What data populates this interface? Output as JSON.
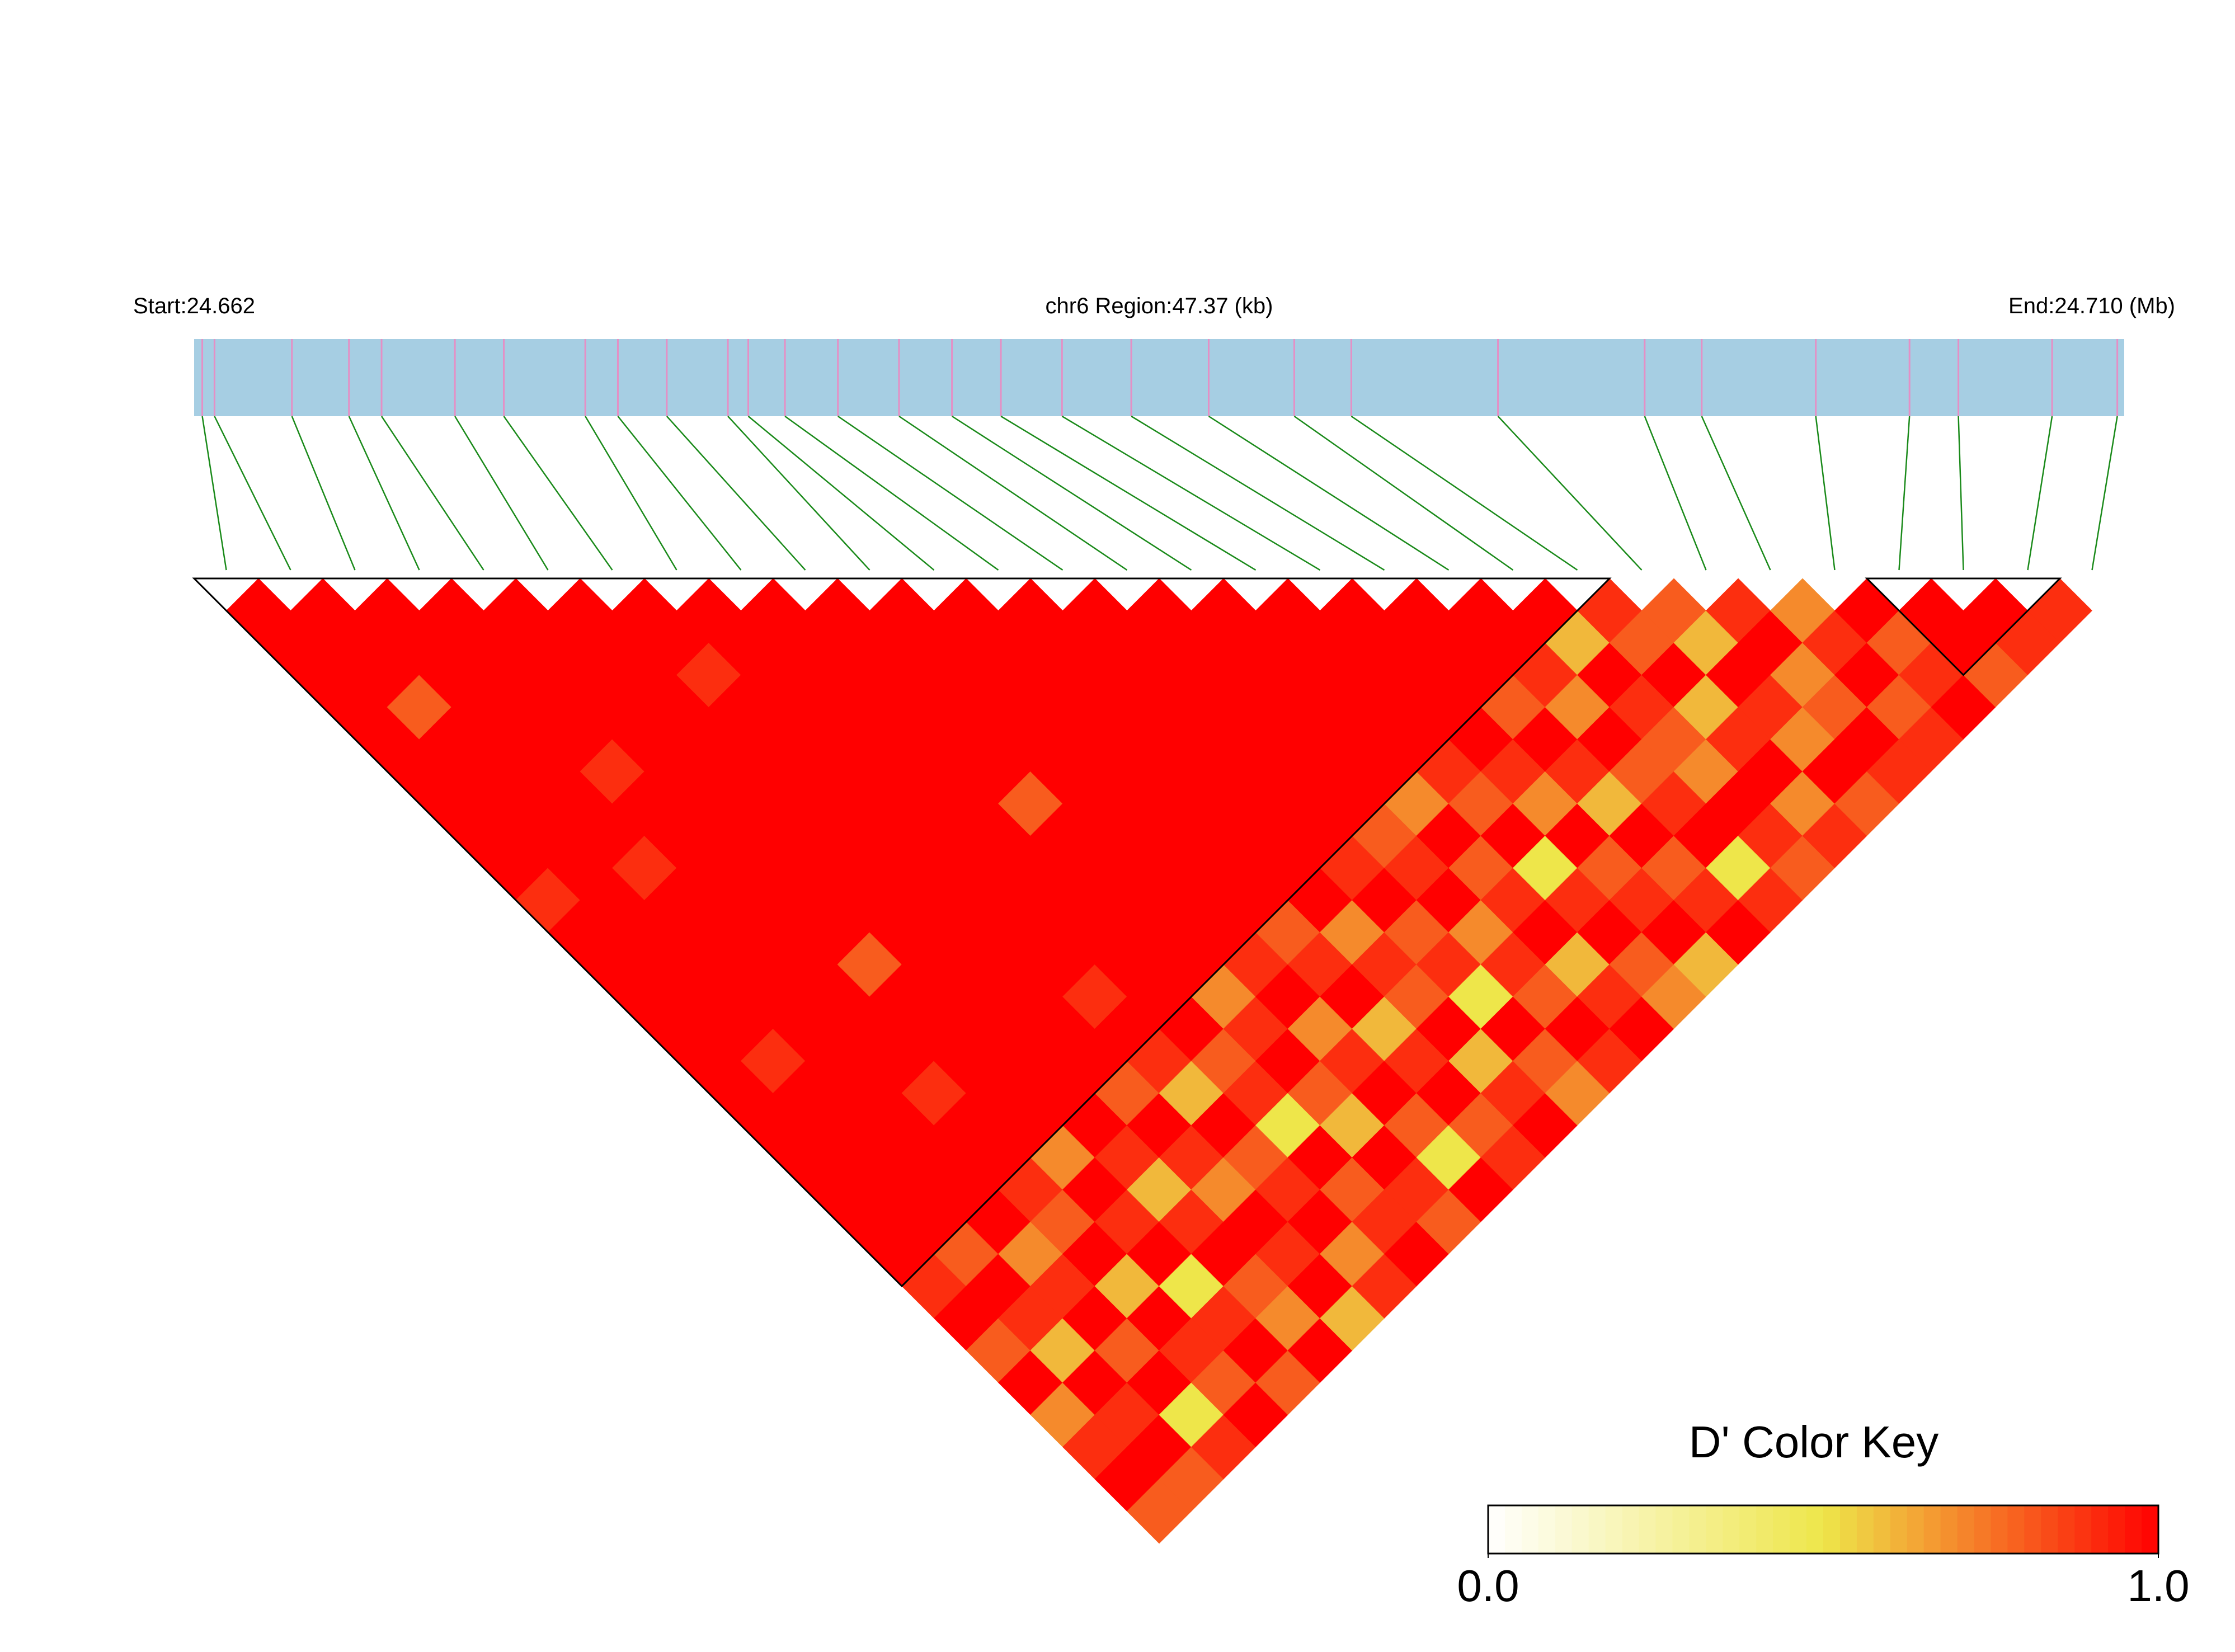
{
  "chart_data": {
    "type": "ld-heatmap",
    "start_label": "Start:24.662",
    "region_label": "chr6 Region:47.37 (kb)",
    "end_label": "End:24.710 (Mb)",
    "xlim": [
      0,
      47.37
    ],
    "positions": [
      0.2,
      0.5,
      2.4,
      3.8,
      4.6,
      6.4,
      7.6,
      9.6,
      10.4,
      11.6,
      13.1,
      13.6,
      14.5,
      15.8,
      17.3,
      18.6,
      19.8,
      21.3,
      23.0,
      24.9,
      27.0,
      28.4,
      32.0,
      35.6,
      37.0,
      39.8,
      42.1,
      43.3,
      45.6,
      47.2
    ],
    "bar_color": "#a6cee3",
    "marker_color": "#e58fc5",
    "connector_color": "#1a8a1a",
    "block_color": "#000000",
    "ld": [
      [
        1,
        1,
        1,
        1,
        1,
        1,
        1,
        1,
        1,
        0.9,
        1,
        1,
        1,
        1,
        1,
        1,
        1,
        1,
        1,
        1,
        1,
        0.9,
        1,
        0.8,
        1,
        0.7,
        0.9,
        1,
        0.8
      ],
      [
        1,
        1,
        1,
        0.8,
        1,
        1,
        1,
        1,
        1,
        1,
        1,
        1,
        1,
        1,
        0.9,
        1,
        1,
        1,
        1,
        1,
        0.8,
        1,
        0.9,
        0.6,
        1,
        0.9,
        1,
        0.8
      ],
      [
        1,
        1,
        1,
        1,
        1,
        1,
        1,
        1,
        0.9,
        1,
        1,
        1,
        1,
        1,
        1,
        1,
        1,
        1,
        1,
        1,
        0.7,
        0.9,
        1,
        0.8,
        1,
        0.5,
        0.9
      ],
      [
        1,
        1,
        1,
        1,
        1,
        0.9,
        1,
        1,
        1,
        1,
        1,
        1,
        1,
        1,
        1,
        0.9,
        1,
        1,
        0.9,
        0.8,
        1,
        0.6,
        1,
        0.9,
        0.8,
        1
      ],
      [
        1,
        1,
        1,
        1,
        1,
        1,
        1,
        1,
        1,
        1,
        1,
        0.8,
        1,
        1,
        1,
        1,
        1,
        0.7,
        1,
        0.9,
        1,
        0.5,
        0.9,
        1,
        0.8
      ],
      [
        1,
        1,
        1,
        1,
        1,
        1,
        1,
        1,
        1,
        1,
        1,
        1,
        1,
        1,
        1,
        1,
        1,
        0.9,
        0.6,
        0.9,
        1,
        0.8,
        0.7,
        1
      ],
      [
        1,
        1,
        0.9,
        1,
        1,
        1,
        1,
        1,
        1,
        1,
        1,
        1,
        1,
        1,
        1,
        0.8,
        1,
        0.9,
        0.7,
        1,
        0.9,
        1,
        0.6
      ],
      [
        1,
        1,
        1,
        1,
        1,
        1,
        1,
        1,
        1,
        1,
        1,
        1,
        0.9,
        1,
        0.9,
        0.6,
        1,
        0.8,
        0.9,
        1,
        0.7,
        0.9
      ],
      [
        1,
        1,
        1,
        1,
        1,
        1,
        1,
        1,
        1,
        1,
        1,
        1,
        1,
        1,
        0.8,
        0.9,
        0.5,
        1,
        0.8,
        0.9,
        1
      ],
      [
        1,
        1,
        1,
        1,
        1,
        1,
        0.8,
        1,
        1,
        1,
        1,
        1,
        0.7,
        0.9,
        1,
        0.8,
        0.6,
        1,
        0.9,
        0.8
      ],
      [
        1,
        1,
        1,
        1,
        1,
        1,
        1,
        1,
        1,
        1,
        1,
        0.9,
        1,
        0.7,
        0.9,
        1,
        0.8,
        0.5,
        1
      ],
      [
        1,
        1,
        1,
        1,
        1,
        1,
        1,
        1,
        1,
        1,
        0.8,
        0.9,
        1,
        0.6,
        0.9,
        1,
        0.8,
        0.9
      ],
      [
        1,
        1,
        1,
        1,
        1,
        1,
        1,
        1,
        1,
        1,
        0.7,
        0.9,
        0.8,
        1,
        0.6,
        0.9,
        1
      ],
      [
        1,
        1,
        1,
        1,
        1,
        1,
        1,
        1,
        0.9,
        1,
        0.8,
        0.9,
        0.5,
        1,
        0.8,
        0.7
      ],
      [
        1,
        1,
        1,
        1,
        1,
        1,
        1,
        0.8,
        0.9,
        1,
        0.7,
        0.9,
        0.8,
        1,
        0.9
      ],
      [
        1,
        1,
        1,
        1,
        1,
        1,
        0.7,
        1,
        0.8,
        0.9,
        1,
        0.6,
        0.9,
        1
      ],
      [
        1,
        1,
        1,
        1,
        1,
        0.9,
        0.8,
        1,
        0.5,
        0.9,
        1,
        0.8,
        0.7
      ],
      [
        1,
        1,
        1,
        1,
        1,
        0.9,
        0.7,
        1,
        0.8,
        0.9,
        1,
        0.6
      ],
      [
        1,
        1,
        1,
        0.8,
        1,
        0.9,
        0.6,
        1,
        0.8,
        0.9,
        1
      ],
      [
        1,
        1,
        0.9,
        0.7,
        1,
        0.8,
        0.9,
        1,
        0.5,
        0.9
      ],
      [
        1,
        0.6,
        1,
        0.9,
        0.8,
        0.7,
        1,
        0.9,
        0.8
      ],
      [
        0.9,
        0.8,
        1,
        0.6,
        0.9,
        1,
        0.7,
        0.9
      ],
      [
        0.8,
        0.6,
        1,
        0.9,
        0.7,
        1,
        0.8
      ],
      [
        0.9,
        1,
        0.7,
        0.8,
        1,
        0.9
      ],
      [
        0.7,
        0.9,
        1,
        0.8,
        0.9
      ],
      [
        1,
        0.8,
        0.9,
        1
      ],
      [
        1,
        1,
        0.8
      ],
      [
        1,
        0.9
      ],
      [
        0.9
      ]
    ],
    "blocks": [
      [
        0,
        21
      ],
      [
        26,
        28
      ]
    ],
    "colorscale": [
      "#ffffff",
      "#eee64a",
      "#ff0000"
    ],
    "colorbar": {
      "title": "D' Color Key",
      "lim": [
        0,
        1
      ],
      "ticks": [
        {
          "value": 0,
          "label": "0.0"
        },
        {
          "value": 1,
          "label": "1.0"
        }
      ]
    }
  }
}
